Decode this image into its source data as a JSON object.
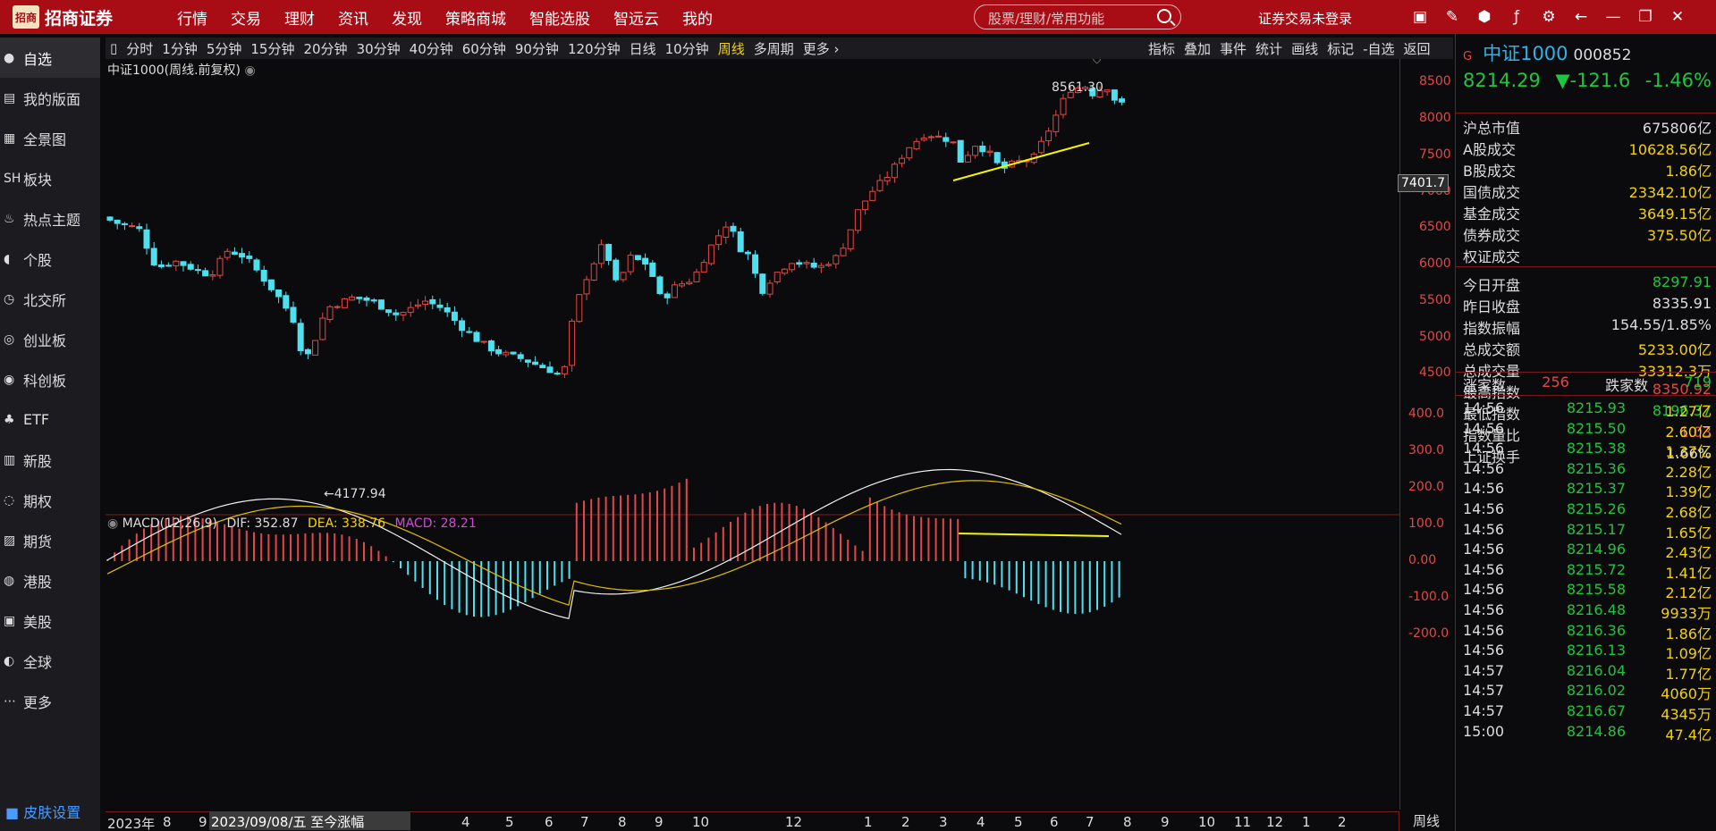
{
  "app": {
    "logo_mark": "招商",
    "logo_text": "招商证券",
    "menu": [
      "行情",
      "交易",
      "理财",
      "资讯",
      "发现",
      "策略商城",
      "智能选股",
      "智远云",
      "我的"
    ],
    "search_placeholder": "股票/理财/常用功能",
    "login_status": "证券交易未登录"
  },
  "toolbar_icons": [
    "tf-icon",
    "edit-icon",
    "cube-icon",
    "fx-icon",
    "gear-icon",
    "back-arrow-icon",
    "minimize-icon",
    "restore-icon",
    "close-icon"
  ],
  "sidebar": {
    "items": [
      {
        "icon": "●",
        "label": "自选"
      },
      {
        "icon": "▤",
        "label": "我的版面"
      },
      {
        "icon": "▦",
        "label": "全景图"
      },
      {
        "icon": "SH",
        "label": "板块"
      },
      {
        "icon": "♨",
        "label": "热点主题"
      },
      {
        "icon": "◖",
        "label": "个股"
      },
      {
        "icon": "◷",
        "label": "北交所"
      },
      {
        "icon": "◎",
        "label": "创业板"
      },
      {
        "icon": "◉",
        "label": "科创板"
      },
      {
        "icon": "♣",
        "label": "ETF"
      },
      {
        "icon": "▥",
        "label": "新股"
      },
      {
        "icon": "◌",
        "label": "期权"
      },
      {
        "icon": "▨",
        "label": "期货"
      },
      {
        "icon": "◍",
        "label": "港股"
      },
      {
        "icon": "▣",
        "label": "美股"
      },
      {
        "icon": "◐",
        "label": "全球"
      },
      {
        "icon": "⋯",
        "label": "更多"
      }
    ],
    "skin": "皮肤设置"
  },
  "periods": [
    "分时",
    "1分钟",
    "5分钟",
    "15分钟",
    "20分钟",
    "30分钟",
    "40分钟",
    "60分钟",
    "90分钟",
    "120分钟",
    "日线",
    "10分钟",
    "周线",
    "多周期",
    "更多 ›"
  ],
  "active_period": "周线",
  "chart_tools": [
    "指标",
    "叠加",
    "事件",
    "统计",
    "画线",
    "标记",
    "-自选",
    "返回"
  ],
  "chart_title": "中证1000(周线.前复权)",
  "chart_data": {
    "type": "candlestick",
    "series_name": "中证1000",
    "period": "周线",
    "ylim": [
      4000,
      8700
    ],
    "yticks": [
      4500,
      5000,
      5500,
      6000,
      6500,
      7000,
      7500,
      8000,
      8500
    ],
    "high_label": "8561.30",
    "low_label": "4177.94",
    "current_price": "7401.7",
    "x_labels": [
      "2023年",
      "8",
      "9",
      "4",
      "5",
      "6",
      "7",
      "8",
      "9",
      "10",
      "12",
      "1",
      "2",
      "3",
      "4",
      "5",
      "6",
      "7",
      "8",
      "9",
      "10",
      "11",
      "12",
      "1",
      "2"
    ]
  },
  "macd": {
    "title": "MACD(12,26,9)",
    "dif": "DIF: 352.87",
    "dea": "DEA: 338.76",
    "macd": "MACD: 28.21",
    "yticks": [
      "400.0",
      "300.0",
      "200.0",
      "100.0",
      "0.00",
      "-100.0",
      "-200.0"
    ]
  },
  "xaxis": {
    "date_label": "2023/09/08/五  至今涨幅34.50%",
    "period": "周线"
  },
  "quote": {
    "tag": "G",
    "name": "中证1000",
    "code": "000852",
    "price": "8214.29",
    "change": "▼-121.6",
    "pct": "-1.46%"
  },
  "stats": [
    {
      "l": "沪总市值",
      "v": "675806亿",
      "c": "#dddddd"
    },
    {
      "l": "A股成交",
      "v": "10628.56亿",
      "c": "#f5d300"
    },
    {
      "l": "B股成交",
      "v": "1.86亿",
      "c": "#f5d300"
    },
    {
      "l": "国债成交",
      "v": "23342.10亿",
      "c": "#f5d300"
    },
    {
      "l": "基金成交",
      "v": "3649.15亿",
      "c": "#f5d300"
    },
    {
      "l": "债券成交",
      "v": "375.50亿",
      "c": "#f5d300"
    },
    {
      "l": "权证成交",
      "v": "",
      "c": "#f5d300"
    },
    {
      "l": "今日开盘",
      "v": "8297.91",
      "c": "#1fc53e"
    },
    {
      "l": "昨日收盘",
      "v": "8335.91",
      "c": "#dddddd"
    },
    {
      "l": "指数振幅",
      "v": "154.55/1.85%",
      "c": "#dddddd"
    },
    {
      "l": "总成交额",
      "v": "5233.00亿",
      "c": "#f5d300"
    },
    {
      "l": "总成交量",
      "v": "33312.3万",
      "c": "#f5d300"
    },
    {
      "l": "最高指数",
      "v": "8350.92",
      "c": "#e24848"
    },
    {
      "l": "最低指数",
      "v": "8196.37",
      "c": "#1fc53e"
    },
    {
      "l": "指数量比",
      "v": "1.03",
      "c": "#e24848"
    },
    {
      "l": "上证换手",
      "v": "1.66%",
      "c": "#dddddd"
    }
  ],
  "breadth": {
    "up_label": "涨家数",
    "up": "256",
    "down_label": "跌家数",
    "down": "719"
  },
  "ticks": [
    [
      "14:56",
      "8215.93",
      "1.27亿"
    ],
    [
      "14:56",
      "8215.50",
      "2.60亿"
    ],
    [
      "14:56",
      "8215.38",
      "1.37亿"
    ],
    [
      "14:56",
      "8215.36",
      "2.28亿"
    ],
    [
      "14:56",
      "8215.37",
      "1.39亿"
    ],
    [
      "14:56",
      "8215.26",
      "2.68亿"
    ],
    [
      "14:56",
      "8215.17",
      "1.65亿"
    ],
    [
      "14:56",
      "8214.96",
      "2.43亿"
    ],
    [
      "14:56",
      "8215.72",
      "1.41亿"
    ],
    [
      "14:56",
      "8215.58",
      "2.12亿"
    ],
    [
      "14:56",
      "8216.48",
      "9933万"
    ],
    [
      "14:56",
      "8216.36",
      "1.86亿"
    ],
    [
      "14:56",
      "8216.13",
      "1.09亿"
    ],
    [
      "14:57",
      "8216.04",
      "1.77亿"
    ],
    [
      "14:57",
      "8216.02",
      "4060万"
    ],
    [
      "14:57",
      "8216.67",
      "4345万"
    ],
    [
      "15:00",
      "8214.86",
      "47.4亿"
    ]
  ]
}
